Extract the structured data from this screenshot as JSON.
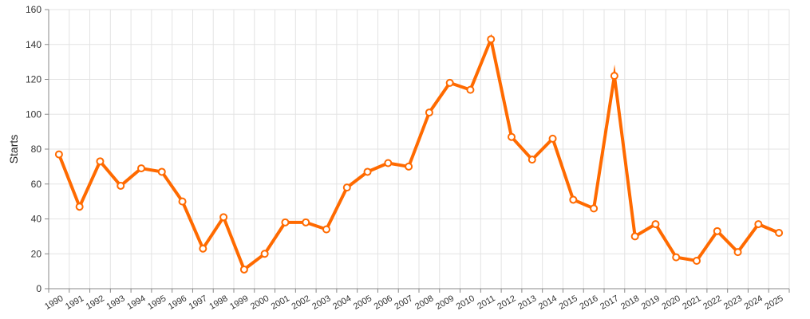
{
  "chart_data": {
    "type": "line",
    "title": "",
    "xlabel": "",
    "ylabel": "Starts",
    "ylim": [
      0,
      160
    ],
    "yticks": [
      0,
      20,
      40,
      60,
      80,
      100,
      120,
      140,
      160
    ],
    "grid": true,
    "legend": "none",
    "colors": {
      "line": "#ff6a00",
      "marker_fill": "#ffffff"
    },
    "categories": [
      "1990",
      "1991",
      "1992",
      "1993",
      "1994",
      "1995",
      "1996",
      "1997",
      "1998",
      "1999",
      "2000",
      "2001",
      "2002",
      "2003",
      "2004",
      "2005",
      "2006",
      "2007",
      "2008",
      "2009",
      "2010",
      "2011",
      "2012",
      "2013",
      "2014",
      "2015",
      "2016",
      "2017",
      "2018",
      "2019",
      "2020",
      "2021",
      "2022",
      "2023",
      "2024",
      "2025"
    ],
    "series": [
      {
        "values": [
          77,
          47,
          73,
          59,
          69,
          67,
          50,
          23,
          41,
          11,
          20,
          38,
          38,
          34,
          58,
          67,
          72,
          70,
          101,
          118,
          114,
          143,
          87,
          74,
          86,
          51,
          46,
          122,
          30,
          37,
          18,
          16,
          33,
          21,
          37,
          32
        ]
      }
    ]
  }
}
